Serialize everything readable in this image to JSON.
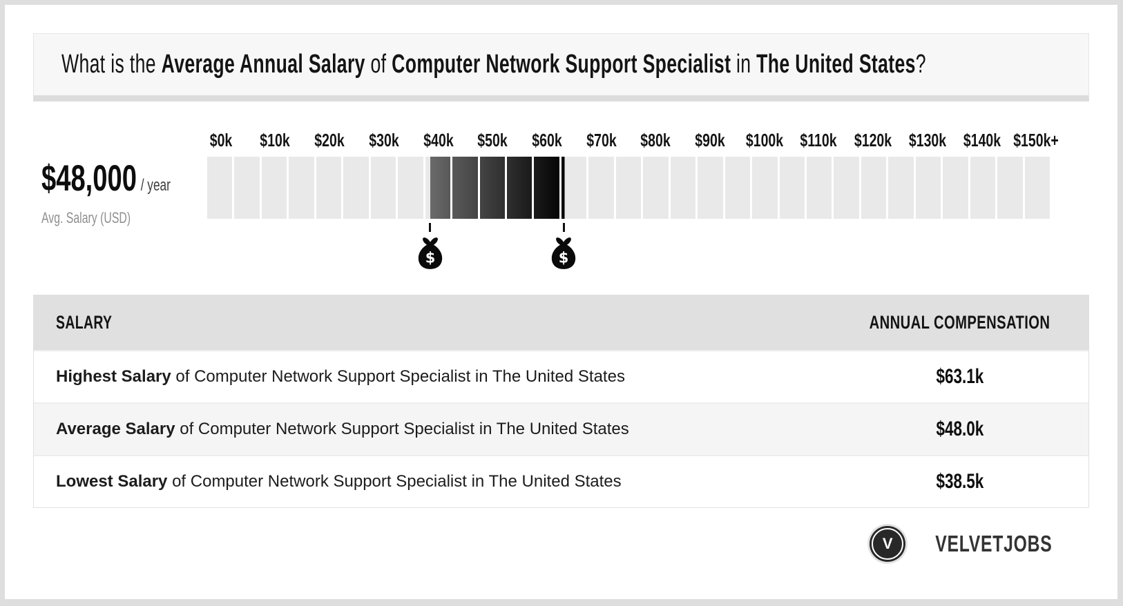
{
  "title": {
    "lead": "What is the ",
    "salary_term": "Average Annual Salary",
    "of": " of ",
    "job_title": "Computer Network Support Specialist",
    "in": " in ",
    "location": "The United States",
    "qmark": "?"
  },
  "summary": {
    "amount": "$48,000",
    "period": "/ year",
    "caption": "Avg. Salary (USD)"
  },
  "chart_data": {
    "type": "range_bar",
    "title": "Salary range scale",
    "unit": "USD per year",
    "axis": {
      "min": 0,
      "max": 155000,
      "tick_step": 10000,
      "segment_step": 5000,
      "tick_labels": [
        "$0k",
        "$10k",
        "$20k",
        "$30k",
        "$40k",
        "$50k",
        "$60k",
        "$70k",
        "$80k",
        "$90k",
        "$100k",
        "$110k",
        "$120k",
        "$130k",
        "$140k",
        "$150k+"
      ]
    },
    "range": {
      "lowest": 38500,
      "average": 48000,
      "highest": 63100
    },
    "markers": [
      {
        "name": "lowest-salary-marker",
        "value": 38500,
        "icon": "money-bag",
        "glyph": "$"
      },
      {
        "name": "highest-salary-marker",
        "value": 63100,
        "icon": "money-bag",
        "glyph": "$"
      }
    ],
    "colors": {
      "track": "#e9e9e9",
      "range_start": "#6a6a6a",
      "range_end": "#030303",
      "marker": "#0a0a0a"
    }
  },
  "table": {
    "columns": [
      "SALARY",
      "ANNUAL COMPENSATION"
    ],
    "rows": [
      {
        "label_bold": "Highest Salary",
        "label_rest": " of Computer Network Support Specialist in The United States",
        "value": "$63.1k"
      },
      {
        "label_bold": "Average Salary",
        "label_rest": " of Computer Network Support Specialist in The United States",
        "value": "$48.0k"
      },
      {
        "label_bold": "Lowest Salary",
        "label_rest": " of Computer Network Support Specialist in The United States",
        "value": "$38.5k"
      }
    ]
  },
  "brand": {
    "initial": "V",
    "name": "VELVETJOBS"
  }
}
